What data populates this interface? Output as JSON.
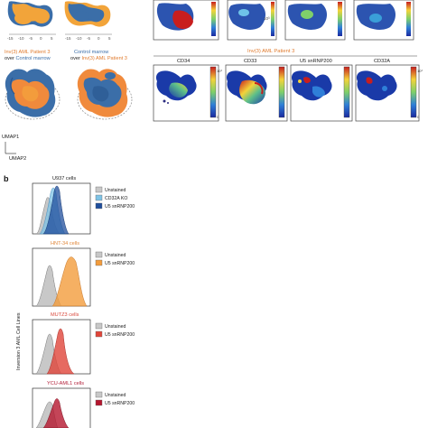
{
  "panel_a": {
    "top_axis_ticks": [
      "-15",
      "-10",
      "-5",
      "0",
      "5"
    ],
    "overlay_labels": [
      {
        "line1": "Inv(3) AML Patient 3",
        "line2_prefix": "over ",
        "line2_highlight": "Control marrow"
      },
      {
        "line1": "Control marrow",
        "line2_prefix": "over ",
        "line2_highlight": "Inv(3) AML Patient 3"
      }
    ],
    "group_title": "Inv(3) AML Patient 3",
    "markers": [
      "CD34",
      "CD33",
      "U5 snRNP200",
      "CD32A"
    ],
    "colorbar_ticks": [
      "10³",
      "0"
    ],
    "top_colorbar_tick": "10³",
    "umap_axis_1": "UMAP1",
    "umap_axis_2": "UMAP2",
    "colors": {
      "patient": "#f2a43a",
      "patient_orange": "#f08a3c",
      "control": "#3b6ea8",
      "highlight_text": "#e07b2e",
      "title_red": "#c0392b"
    }
  },
  "panel_b": {
    "label": "b",
    "y_axis_label": "Inversion 3 AML Cell Lines",
    "histograms": [
      {
        "title": "U937 cells",
        "title_color": "#222222",
        "legend": [
          {
            "label": "Unstained",
            "color": "#c8c8c8"
          },
          {
            "label": "CD32A KO",
            "color": "#7ec3e6"
          },
          {
            "label": "U5 snRNP200",
            "color": "#1f4e9c"
          }
        ]
      },
      {
        "title": "HNT-34 cells",
        "title_color": "#e0873a",
        "legend": [
          {
            "label": "Unstained",
            "color": "#c8c8c8"
          },
          {
            "label": "U5 snRNP200",
            "color": "#f39c3c"
          }
        ]
      },
      {
        "title": "MUTZ3 cells",
        "title_color": "#d9473a",
        "legend": [
          {
            "label": "Unstained",
            "color": "#c8c8c8"
          },
          {
            "label": "U5 snRNP200",
            "color": "#e0453a"
          }
        ]
      },
      {
        "title": "YCU-AML1 cells",
        "title_color": "#b3203a",
        "legend": [
          {
            "label": "Unstained",
            "color": "#c8c8c8"
          },
          {
            "label": "U5 snRNP200",
            "color": "#b5162e"
          }
        ]
      }
    ]
  }
}
